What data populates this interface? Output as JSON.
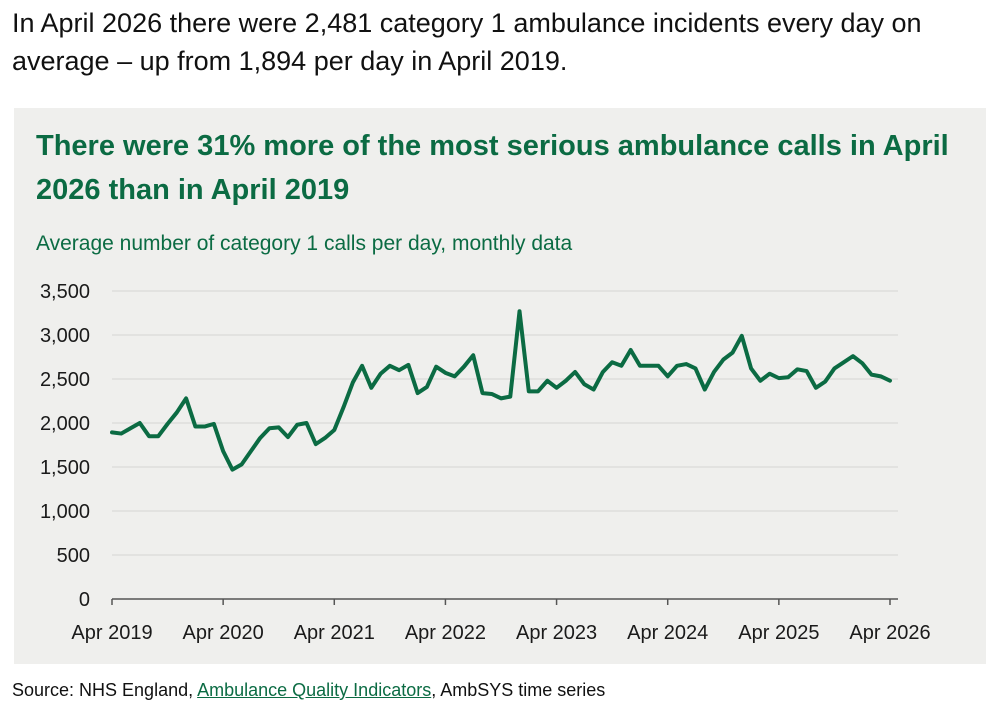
{
  "intro_text": "In April 2026 there were 2,481 category 1 ambulance incidents every day on average – up from 1,894 per day in April 2019.",
  "source": {
    "prefix": "Source: NHS England, ",
    "link_text": "Ambulance Quality Indicators",
    "suffix": ", AmbSYS time series"
  },
  "colors": {
    "line": "#0b6b43",
    "title": "#0b6b43",
    "panel_bg": "#efefed",
    "gridline": "#d4d4d2"
  },
  "chart_data": {
    "type": "line",
    "title": "There were 31% more of the most serious ambulance calls in April 2026 than in April 2019",
    "subtitle": "Average number of category 1 calls per day, monthly data",
    "xlabel": "",
    "ylabel": "",
    "ylim": [
      0,
      3500
    ],
    "yticks": [
      0,
      500,
      1000,
      1500,
      2000,
      2500,
      3000,
      3500
    ],
    "ytick_labels": [
      "0",
      "500",
      "1,000",
      "1,500",
      "2,000",
      "2,500",
      "3,000",
      "3,500"
    ],
    "xtick_labels": [
      "Apr 2019",
      "Apr 2020",
      "Apr 2021",
      "Apr 2022",
      "Apr 2023",
      "Apr 2024",
      "Apr 2025",
      "Apr 2026"
    ],
    "grid": true,
    "x_start": "Apr 2019",
    "x_end": "Apr 2026",
    "series": [
      {
        "values": [
          1894,
          1880,
          1940,
          2000,
          1850,
          1850,
          1990,
          2120,
          2280,
          1960,
          1960,
          1990,
          1680,
          1470,
          1530,
          1680,
          1830,
          1940,
          1950,
          1840,
          1980,
          2000,
          1760,
          1830,
          1920,
          2180,
          2460,
          2650,
          2400,
          2560,
          2650,
          2600,
          2660,
          2340,
          2410,
          2640,
          2570,
          2530,
          2640,
          2770,
          2340,
          2330,
          2280,
          2300,
          3270,
          2360,
          2360,
          2480,
          2400,
          2480,
          2580,
          2440,
          2380,
          2580,
          2690,
          2650,
          2830,
          2650,
          2650,
          2650,
          2530,
          2650,
          2670,
          2620,
          2380,
          2580,
          2720,
          2800,
          2990,
          2620,
          2480,
          2560,
          2510,
          2520,
          2610,
          2590,
          2400,
          2470,
          2620,
          2690,
          2760,
          2680,
          2550,
          2530,
          2481
        ]
      }
    ]
  }
}
